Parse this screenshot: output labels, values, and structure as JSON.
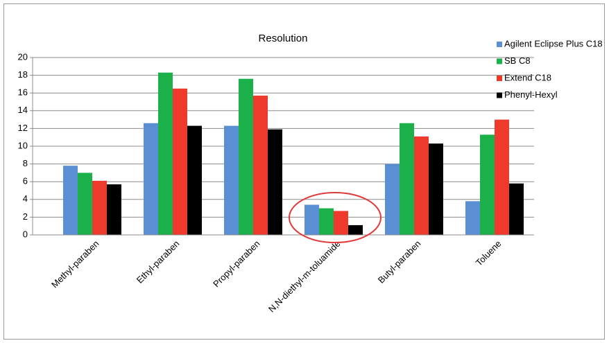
{
  "chart_data": {
    "type": "bar",
    "title": "Resolution",
    "categories": [
      "Methyl-paraben",
      "Ethyl-paraben",
      "Propyl-paraben",
      "N,N-diethyl-m-toluamide",
      "Butyl-paraben",
      "Toluene"
    ],
    "series": [
      {
        "name": "Agilent Eclipse Plus C18",
        "color": "#5b8fd4",
        "values": [
          7.8,
          12.6,
          12.3,
          3.4,
          8.0,
          3.8
        ]
      },
      {
        "name": "SB C8",
        "color": "#1cb04b",
        "values": [
          7.0,
          18.3,
          17.6,
          3.0,
          12.6,
          11.3
        ]
      },
      {
        "name": "Extend C18",
        "color": "#ee3a2c",
        "values": [
          6.1,
          16.5,
          15.7,
          2.7,
          11.1,
          13.0
        ]
      },
      {
        "name": "Phenyl-Hexyl",
        "color": "#000000",
        "values": [
          5.7,
          12.3,
          11.9,
          1.1,
          10.3,
          5.8
        ]
      }
    ],
    "ylim": [
      0,
      20
    ],
    "yticks": [
      0,
      2,
      4,
      6,
      8,
      10,
      12,
      14,
      16,
      18,
      20
    ],
    "grid": true,
    "legend": "right"
  }
}
